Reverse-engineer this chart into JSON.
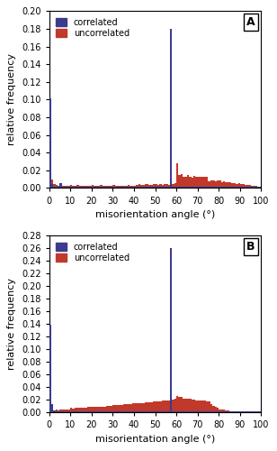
{
  "panel_A": {
    "title": "A",
    "ylim": [
      0,
      0.2
    ],
    "yticks": [
      0.0,
      0.02,
      0.04,
      0.06,
      0.08,
      0.1,
      0.12,
      0.14,
      0.16,
      0.18,
      0.2
    ],
    "correlated": [
      0.101,
      0.005,
      0.002,
      0.001,
      0.001,
      0.006,
      0.001,
      0.002,
      0.001,
      0.001,
      0.001,
      0.001,
      0.001,
      0.001,
      0.001,
      0.001,
      0.001,
      0.001,
      0.001,
      0.001,
      0.001,
      0.001,
      0.001,
      0.001,
      0.001,
      0.001,
      0.001,
      0.001,
      0.001,
      0.001,
      0.001,
      0.001,
      0.001,
      0.001,
      0.001,
      0.001,
      0.001,
      0.001,
      0.001,
      0.001,
      0.001,
      0.001,
      0.001,
      0.001,
      0.001,
      0.001,
      0.001,
      0.001,
      0.001,
      0.001,
      0.001,
      0.001,
      0.001,
      0.001,
      0.001,
      0.001,
      0.001,
      0.18,
      0.001,
      0.001,
      0.001,
      0.001,
      0.001,
      0.001,
      0.001,
      0.001,
      0.001,
      0.001,
      0.001,
      0.001,
      0.001,
      0.001,
      0.001,
      0.001,
      0.001,
      0.001,
      0.001,
      0.001,
      0.001,
      0.001,
      0.001,
      0.001,
      0.001,
      0.001,
      0.001,
      0.001,
      0.001,
      0.001,
      0.001,
      0.001,
      0.001,
      0.001,
      0.001,
      0.001,
      0.001,
      0.001,
      0.001,
      0.001,
      0.001,
      0.001
    ],
    "uncorrelated": [
      0.025,
      0.01,
      0.005,
      0.004,
      0.003,
      0.002,
      0.003,
      0.003,
      0.003,
      0.003,
      0.004,
      0.003,
      0.003,
      0.004,
      0.003,
      0.003,
      0.003,
      0.003,
      0.003,
      0.003,
      0.004,
      0.003,
      0.003,
      0.003,
      0.004,
      0.003,
      0.003,
      0.003,
      0.003,
      0.003,
      0.004,
      0.003,
      0.003,
      0.003,
      0.003,
      0.003,
      0.003,
      0.004,
      0.003,
      0.003,
      0.003,
      0.004,
      0.005,
      0.004,
      0.004,
      0.005,
      0.005,
      0.004,
      0.004,
      0.005,
      0.005,
      0.004,
      0.005,
      0.004,
      0.005,
      0.005,
      0.004,
      0.065,
      0.005,
      0.006,
      0.028,
      0.015,
      0.016,
      0.013,
      0.013,
      0.015,
      0.013,
      0.012,
      0.014,
      0.013,
      0.013,
      0.013,
      0.013,
      0.013,
      0.013,
      0.008,
      0.009,
      0.009,
      0.008,
      0.009,
      0.009,
      0.007,
      0.008,
      0.007,
      0.007,
      0.007,
      0.006,
      0.006,
      0.005,
      0.006,
      0.005,
      0.005,
      0.004,
      0.004,
      0.004,
      0.003,
      0.003,
      0.003,
      0.002,
      0.001
    ]
  },
  "panel_B": {
    "title": "B",
    "ylim": [
      0,
      0.28
    ],
    "yticks": [
      0.0,
      0.02,
      0.04,
      0.06,
      0.08,
      0.1,
      0.12,
      0.14,
      0.16,
      0.18,
      0.2,
      0.22,
      0.24,
      0.26,
      0.28
    ],
    "correlated": [
      0.139,
      0.013,
      0.003,
      0.001,
      0.001,
      0.001,
      0.001,
      0.001,
      0.001,
      0.001,
      0.001,
      0.001,
      0.001,
      0.001,
      0.001,
      0.001,
      0.001,
      0.001,
      0.001,
      0.001,
      0.001,
      0.001,
      0.001,
      0.001,
      0.001,
      0.001,
      0.001,
      0.001,
      0.001,
      0.001,
      0.001,
      0.001,
      0.001,
      0.001,
      0.001,
      0.001,
      0.001,
      0.001,
      0.001,
      0.001,
      0.001,
      0.001,
      0.001,
      0.001,
      0.001,
      0.001,
      0.001,
      0.001,
      0.001,
      0.001,
      0.001,
      0.001,
      0.001,
      0.001,
      0.001,
      0.001,
      0.001,
      0.26,
      0.001,
      0.001,
      0.001,
      0.001,
      0.001,
      0.001,
      0.001,
      0.001,
      0.001,
      0.001,
      0.001,
      0.001,
      0.001,
      0.001,
      0.001,
      0.001,
      0.001,
      0.001,
      0.001,
      0.001,
      0.001,
      0.001,
      0.001,
      0.001,
      0.001,
      0.001,
      0.001,
      0.001,
      0.001,
      0.001,
      0.001,
      0.001,
      0.001,
      0.001,
      0.001,
      0.001,
      0.001,
      0.001,
      0.001,
      0.001,
      0.001,
      0.001
    ],
    "uncorrelated": [
      0.004,
      0.005,
      0.003,
      0.005,
      0.003,
      0.005,
      0.005,
      0.005,
      0.005,
      0.005,
      0.007,
      0.006,
      0.007,
      0.007,
      0.007,
      0.007,
      0.007,
      0.007,
      0.008,
      0.008,
      0.008,
      0.009,
      0.009,
      0.009,
      0.009,
      0.009,
      0.009,
      0.01,
      0.01,
      0.01,
      0.011,
      0.011,
      0.012,
      0.012,
      0.012,
      0.013,
      0.013,
      0.013,
      0.013,
      0.014,
      0.014,
      0.014,
      0.015,
      0.015,
      0.015,
      0.016,
      0.016,
      0.016,
      0.016,
      0.017,
      0.017,
      0.017,
      0.017,
      0.018,
      0.018,
      0.018,
      0.019,
      0.028,
      0.02,
      0.022,
      0.026,
      0.025,
      0.024,
      0.022,
      0.022,
      0.021,
      0.021,
      0.02,
      0.02,
      0.019,
      0.019,
      0.019,
      0.018,
      0.018,
      0.017,
      0.017,
      0.013,
      0.01,
      0.008,
      0.007,
      0.005,
      0.005,
      0.004,
      0.003,
      0.003,
      0.002,
      0.002,
      0.002,
      0.001,
      0.001,
      0.001,
      0.001,
      0.001,
      0.001,
      0.001,
      0.001,
      0.001,
      0.001,
      0.001,
      0.001
    ]
  },
  "blue_color": "#3c3c8c",
  "red_color": "#c0392b",
  "xlabel": "misorientation angle (°)",
  "ylabel": "relative frequency",
  "legend_correlated": "correlated",
  "legend_uncorrelated": "uncorrelated",
  "bar_width": 1.0,
  "xlim": [
    0,
    100
  ],
  "xticks": [
    0,
    10,
    20,
    30,
    40,
    50,
    60,
    70,
    80,
    90,
    100
  ]
}
